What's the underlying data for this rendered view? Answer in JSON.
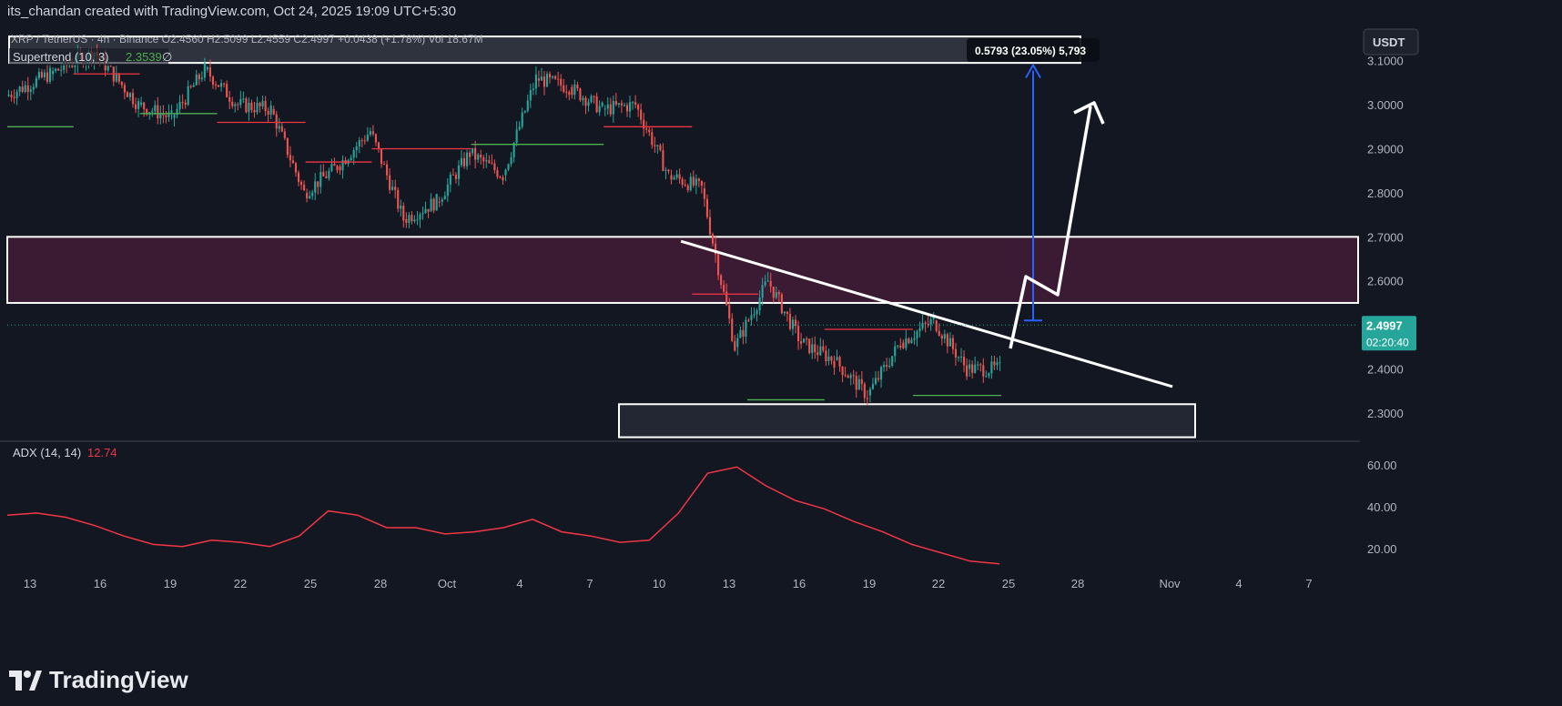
{
  "header": {
    "attribution": "its_chandan created with TradingView.com, Oct 24, 2025 19:09 UTC+5:30"
  },
  "legend": {
    "symbol": "XRP / TetherUS · 4h · Binance",
    "ohlc": "O2.4560  H2.5099  L2.4559  C2.4997  +0.0438 (+1.78%)  Vol 18.67M",
    "supertrend_label": "Supertrend (10, 3)",
    "supertrend_value": "2.3539",
    "supertrend_extra": "∅",
    "adx_label": "ADX (14, 14)",
    "adx_value": "12.74"
  },
  "currency_button": "USDT",
  "measure_label": "0.5793 (23.05%) 5,793",
  "last_price": {
    "price": "2.4997",
    "countdown": "02:20:40"
  },
  "price_axis": [
    "3.1000",
    "3.0000",
    "2.9000",
    "2.8000",
    "2.7000",
    "2.6000",
    "2.4000",
    "2.3000"
  ],
  "adx_axis": [
    "60.00",
    "40.00",
    "20.00"
  ],
  "time_axis": [
    "13",
    "16",
    "19",
    "22",
    "25",
    "28",
    "Oct",
    "4",
    "7",
    "10",
    "13",
    "16",
    "19",
    "22",
    "25",
    "28",
    "Nov",
    "4",
    "7"
  ],
  "brand": "TradingView",
  "colors": {
    "background": "#131722",
    "up": "#26a69a",
    "down": "#ef5350",
    "supertrend_up": "#4caf50",
    "supertrend_down": "#f23645",
    "adx": "#f23645",
    "measure": "#2962ff",
    "zone_resistance": "#4a1c3a"
  },
  "chart_data": {
    "type": "candlestick",
    "symbol": "XRP / TetherUS",
    "timeframe": "4h",
    "ylim": [
      2.24,
      3.18
    ],
    "current_price": 2.4997,
    "ohlc_last": {
      "open": 2.456,
      "high": 2.5099,
      "low": 2.4559,
      "close": 2.4997
    },
    "time_ticks": [
      "13",
      "16",
      "19",
      "22",
      "25",
      "28",
      "Oct",
      "4",
      "7",
      "10",
      "13",
      "16",
      "19",
      "22",
      "25",
      "28",
      "Nov",
      "4",
      "7"
    ],
    "price_path": [
      [
        0,
        3.02,
        3.07
      ],
      [
        4,
        3.07,
        3.15
      ],
      [
        8,
        3.12,
        3.02
      ],
      [
        12,
        3.0,
        2.96
      ],
      [
        15,
        2.97,
        3.08
      ],
      [
        18,
        3.08,
        3.02
      ],
      [
        21,
        3.0,
        2.98
      ],
      [
        24,
        2.99,
        2.79
      ],
      [
        27,
        2.8,
        2.9
      ],
      [
        30,
        2.86,
        2.96
      ],
      [
        33,
        2.94,
        2.75
      ],
      [
        36,
        2.74,
        2.78
      ],
      [
        39,
        2.78,
        2.92
      ],
      [
        42,
        2.89,
        2.85
      ],
      [
        45,
        2.84,
        3.05
      ],
      [
        48,
        3.06,
        3.05
      ],
      [
        51,
        3.04,
        2.98
      ],
      [
        54,
        2.99,
        3.02
      ],
      [
        57,
        3.0,
        2.86
      ],
      [
        60,
        2.84,
        2.8
      ],
      [
        63,
        2.81,
        2.4
      ],
      [
        66,
        2.45,
        2.63
      ],
      [
        69,
        2.6,
        2.47
      ],
      [
        72,
        2.46,
        2.43
      ],
      [
        75,
        2.42,
        2.32
      ],
      [
        78,
        2.34,
        2.45
      ],
      [
        81,
        2.46,
        2.52
      ],
      [
        84,
        2.51,
        2.43
      ],
      [
        87,
        2.4,
        2.39
      ],
      [
        90,
        2.4,
        2.5
      ]
    ],
    "supertrend": [
      {
        "from": 0,
        "to": 6,
        "value": 2.95,
        "trend": "up"
      },
      {
        "from": 6,
        "to": 12,
        "value": 3.07,
        "trend": "down"
      },
      {
        "from": 12,
        "to": 19,
        "value": 2.98,
        "trend": "up"
      },
      {
        "from": 19,
        "to": 27,
        "value": 2.96,
        "trend": "down"
      },
      {
        "from": 27,
        "to": 33,
        "value": 2.87,
        "trend": "down"
      },
      {
        "from": 33,
        "to": 42,
        "value": 2.9,
        "trend": "down"
      },
      {
        "from": 42,
        "to": 54,
        "value": 2.91,
        "trend": "up"
      },
      {
        "from": 54,
        "to": 62,
        "value": 2.95,
        "trend": "down"
      },
      {
        "from": 62,
        "to": 68,
        "value": 2.57,
        "trend": "down"
      },
      {
        "from": 67,
        "to": 74,
        "value": 2.33,
        "trend": "up"
      },
      {
        "from": 74,
        "to": 82,
        "value": 2.49,
        "trend": "down"
      },
      {
        "from": 82,
        "to": 90,
        "value": 2.34,
        "trend": "up"
      }
    ],
    "adx": [
      36,
      37,
      35,
      31,
      26,
      22,
      21,
      24,
      23,
      21,
      26,
      38,
      36,
      30,
      30,
      27,
      28,
      30,
      34,
      28,
      26,
      23,
      24,
      37,
      56,
      59,
      50,
      43,
      39,
      33,
      28,
      22,
      18,
      14,
      12.74
    ],
    "zones": [
      {
        "name": "resistance-top",
        "from": 3.095,
        "to": 3.155
      },
      {
        "name": "resistance-mid",
        "from": 2.55,
        "to": 2.7
      },
      {
        "name": "support",
        "from": 2.245,
        "to": 2.32
      }
    ],
    "trendline": {
      "start": [
        61,
        2.69
      ],
      "end": [
        118,
        2.36
      ]
    },
    "projection": {
      "from": 2.51,
      "to": 3.09,
      "change": 0.5793,
      "percent": "23.05%"
    }
  }
}
